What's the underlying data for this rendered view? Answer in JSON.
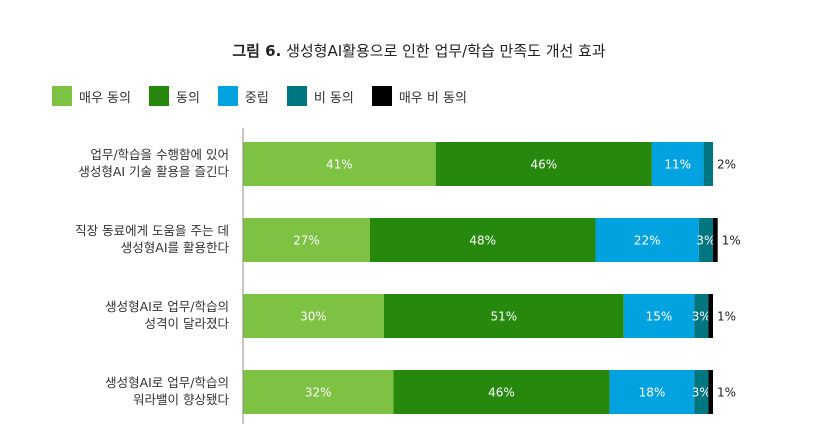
{
  "figure_label": "그림 6.",
  "figure_title": "생성형AI활용으로 인한 업무/학습 만족도 개선 효과",
  "chart_data": {
    "type": "bar",
    "orientation": "horizontal",
    "stacked": true,
    "unit": "%",
    "categories": [
      [
        "업무/학습을 수행함에 있어",
        "생성형AI 기술 활용을 즐긴다"
      ],
      [
        "직장 동료에게 도움을 주는 데",
        "생성형AI를 활용한다"
      ],
      [
        "생성형AI로 업무/학습의",
        "성격이 달라졌다"
      ],
      [
        "생성형AI로 업무/학습의",
        "워라밸이 향상됐다"
      ]
    ],
    "series": [
      {
        "name": "매우 동의",
        "color": "#7dc242",
        "values": [
          41,
          27,
          30,
          32
        ]
      },
      {
        "name": "동의",
        "color": "#26890d",
        "values": [
          46,
          48,
          51,
          46
        ]
      },
      {
        "name": "중립",
        "color": "#00a3e0",
        "values": [
          11,
          22,
          15,
          18
        ]
      },
      {
        "name": "비 동의",
        "color": "#007680",
        "values": [
          2,
          3,
          3,
          3
        ]
      },
      {
        "name": "매우 비 동의",
        "color": "#000000",
        "values": [
          0,
          1,
          1,
          1
        ]
      }
    ],
    "outside_labels": [
      "2%",
      "1%",
      "1%",
      "1%"
    ],
    "xlim": [
      0,
      100
    ],
    "grid": false,
    "legend_position": "top-left"
  }
}
